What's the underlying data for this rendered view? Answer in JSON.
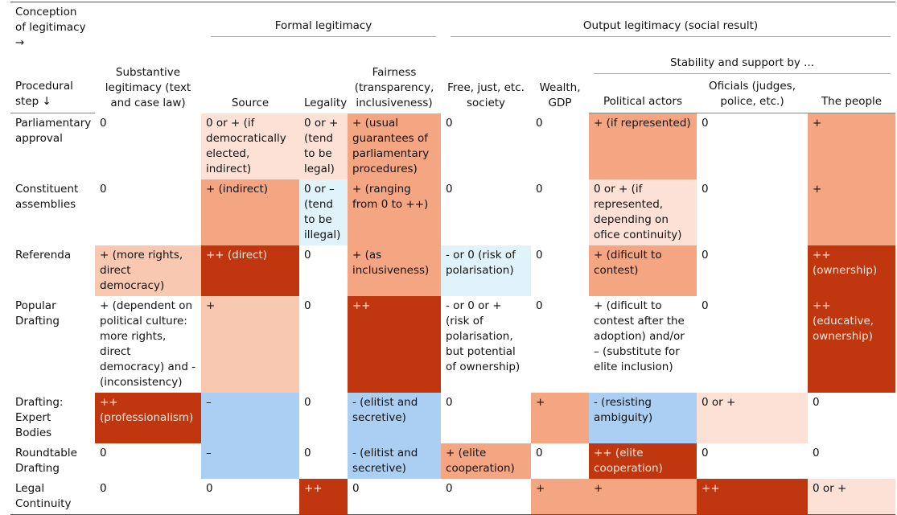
{
  "header": {
    "conception": "Conception of legitimacy →",
    "procedural": "Procedural step ↓",
    "formal": "Formal legitimacy",
    "output": "Output legitimacy (social result)",
    "stability": "Stability and support by ...",
    "columns": [
      "Substantive legitimacy (text and case law)",
      "Source",
      "Legality",
      "Fairness (transparency, inclusiveness)",
      "Free, just, etc. society",
      "Wealth, GDP",
      "Political actors",
      "Oficials (judges, police, etc.)",
      "The people"
    ]
  },
  "table": {
    "rows": [
      {
        "step": "Parliamentary approval",
        "cells": [
          "0",
          "0 or + (if democratically elected, indirect)",
          "0 or + (tend to be legal)",
          "+ (usual guarantees of parliamentary procedures)",
          "0",
          "0",
          "+ (if represented)",
          "0",
          "+"
        ],
        "shades": [
          null,
          "#fde1d6",
          "#fde1d6",
          "#f4a582",
          null,
          null,
          "#f4a582",
          null,
          "#f4a582"
        ]
      },
      {
        "step": "Constituent assemblies",
        "cells": [
          "0",
          "+ (indirect)",
          "0 or – (tend to be illegal)",
          "+ (ranging from 0 to ++)",
          "0",
          "0",
          "0 or + (if represented, depending on ofice continuity)",
          "0",
          "+"
        ],
        "shades": [
          null,
          "#f4a582",
          "#e1f3fa",
          "#f4a582",
          null,
          null,
          "#fde1d6",
          null,
          "#f4a582"
        ]
      },
      {
        "step": "Referenda",
        "cells": [
          "+ (more rights, direct democracy)",
          "++ (direct)",
          "0",
          "+ (as inclusiveness)",
          "- or 0 (risk of polarisation)",
          "0",
          "+ (dificult to contest)",
          "0",
          "++ (ownership)"
        ],
        "shades": [
          "#f9c8b1",
          "#c0360f",
          null,
          "#f4a582",
          "#e1f3fa",
          null,
          "#f4a582",
          null,
          "#c0360f"
        ]
      },
      {
        "step": "Popular Drafting",
        "cells": [
          "+ (dependent on political culture: more rights, direct democracy) and - (inconsistency)",
          "+",
          "0",
          "++",
          "- or 0 or + (risk of polarisation, but potential of ownership)",
          "0",
          "+ (dificult to contest after the adoption) and/or – (substitute for elite inclusion)",
          "0",
          "++ (educative, ownership)"
        ],
        "shades": [
          null,
          "#f9c8b1",
          null,
          "#c0360f",
          null,
          null,
          null,
          null,
          "#c0360f"
        ]
      },
      {
        "step": "Drafting: Expert Bodies",
        "cells": [
          "++ (professionalism)",
          "–",
          "0",
          "- (elitist and secretive)",
          "0",
          "+",
          "- (resisting ambiguity)",
          "0 or +",
          "0"
        ],
        "shades": [
          "#c0360f",
          "#aacff2",
          null,
          "#aacff2",
          null,
          "#f4a582",
          "#aacff2",
          "#fde1d6",
          null
        ]
      },
      {
        "step": "Roundtable Drafting",
        "cells": [
          "0",
          "–",
          "0",
          "- (elitist and secretive)",
          "+ (elite cooperation)",
          "0",
          "++ (elite cooperation)",
          "0",
          "0"
        ],
        "shades": [
          null,
          "#aacff2",
          null,
          "#aacff2",
          "#f4a582",
          null,
          "#c0360f",
          null,
          null
        ]
      },
      {
        "step": "Legal Continuity",
        "cells": [
          "0",
          "0",
          "++",
          "0",
          "0",
          "+",
          "+",
          "++",
          "0 or +"
        ],
        "shades": [
          null,
          null,
          "#c0360f",
          null,
          null,
          "#f4a582",
          "#f4a582",
          "#c0360f",
          "#fde1d6"
        ]
      }
    ]
  }
}
